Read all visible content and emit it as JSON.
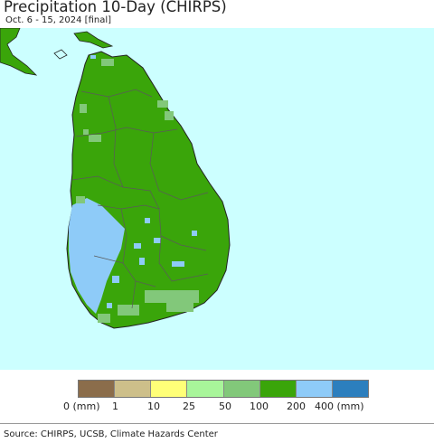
{
  "title": "Precipitation 10-Day (CHIRPS)",
  "subtitle": "Oct. 6 - 15, 2024 [final]",
  "colors": {
    "ocean": "#ccffff",
    "dominant_100_200": "#3aa50a",
    "range_200_400": "#8ecbf8",
    "range_50_100": "#82c87a",
    "boundary": "#5a5a5a"
  },
  "legend": {
    "swatches": [
      {
        "color": "#8b6d4b"
      },
      {
        "color": "#cdbf8a"
      },
      {
        "color": "#ffff78"
      },
      {
        "color": "#a8f59a"
      },
      {
        "color": "#82c87a"
      },
      {
        "color": "#3aa50a"
      },
      {
        "color": "#8ecbf8"
      },
      {
        "color": "#2c7fbe"
      }
    ],
    "labels": [
      "0 (mm)",
      "1",
      "10",
      "25",
      "50",
      "100",
      "200",
      "400 (mm)"
    ]
  },
  "source": "Source: CHIRPS, UCSB, Climate Hazards Center"
}
